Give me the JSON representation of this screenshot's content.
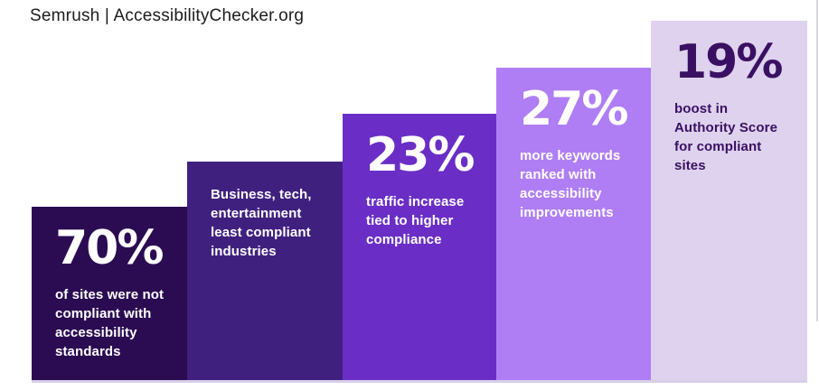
{
  "header": {
    "title": "Semrush | AccessibilityChecker.org",
    "color": "#1c1c1c"
  },
  "chart_data": {
    "type": "bar",
    "title": "Semrush | AccessibilityChecker.org",
    "layout": "ascending staircase, five adjacent bars, baseline at bottom",
    "legend": "none",
    "axes": "none",
    "bars": [
      {
        "value": 70,
        "value_label": "70%",
        "description": "of sites were not\ncompliant with\naccessibility\nstandards",
        "color": "#2b0c52",
        "text_color": "#ffffff"
      },
      {
        "value_label": "",
        "description": "Business, tech,\nentertainment\nleast compliant\nindustries",
        "color": "#40207f",
        "text_color": "#ffffff"
      },
      {
        "value": 23,
        "value_label": "23%",
        "description": "traffic increase\ntied to higher\ncompliance",
        "color": "#6a2ec6",
        "text_color": "#ffffff"
      },
      {
        "value": 27,
        "value_label": "27%",
        "description": "more keywords\nranked with\naccessibility\nimprovements",
        "color": "#af7ef4",
        "text_color": "#ffffff"
      },
      {
        "value": 19,
        "value_label": "19%",
        "description": "boost in\nAuthority Score\nfor compliant\nsites",
        "color": "#ded2ee",
        "text_color": "#3a1062"
      }
    ]
  }
}
